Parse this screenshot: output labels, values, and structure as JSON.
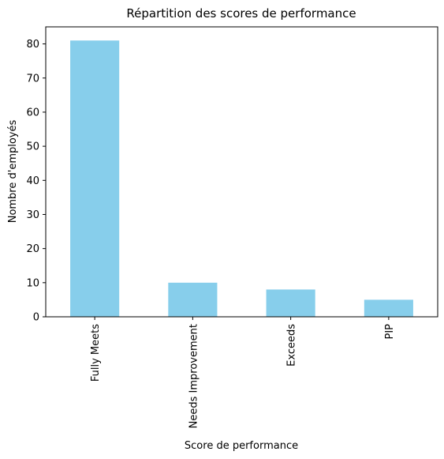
{
  "chart_data": {
    "type": "bar",
    "title": "Répartition des scores de performance",
    "xlabel": "Score de performance",
    "ylabel": "Nombre d'employés",
    "categories": [
      "Fully Meets",
      "Needs Improvement",
      "Exceeds",
      "PIP"
    ],
    "values": [
      81,
      10,
      8,
      5
    ],
    "ylim": [
      0,
      85
    ],
    "yticks": [
      0,
      10,
      20,
      30,
      40,
      50,
      60,
      70,
      80
    ],
    "bar_color": "#87ceeb",
    "grid": false,
    "legend": "none"
  }
}
